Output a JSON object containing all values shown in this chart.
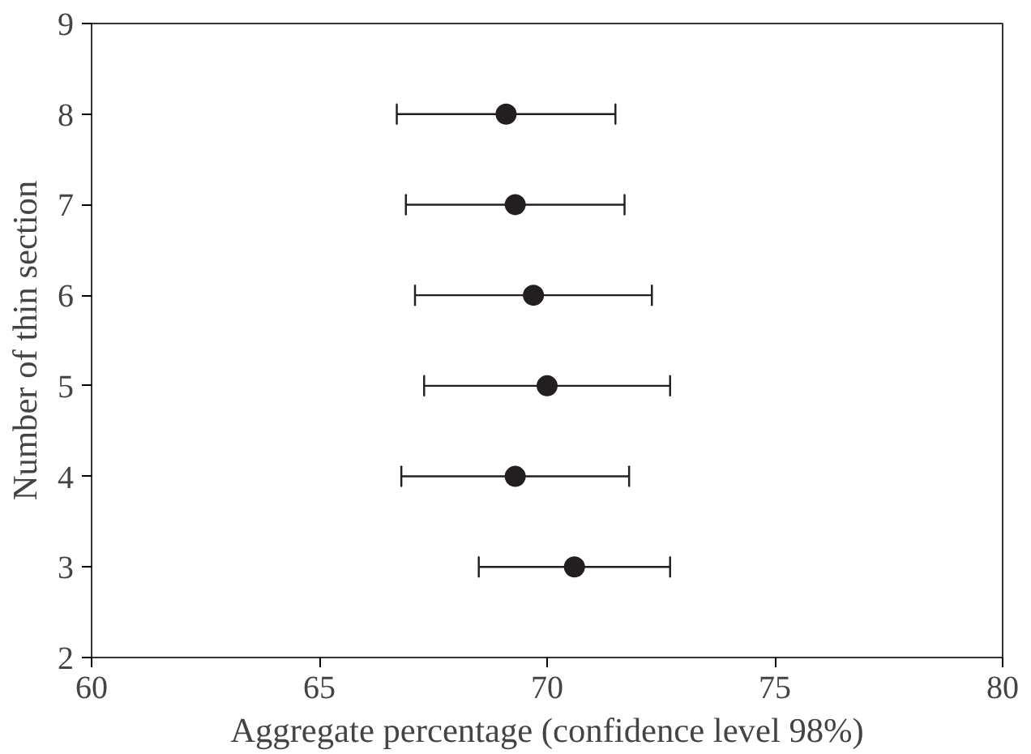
{
  "chart_data": {
    "type": "scatter",
    "xlabel": "Aggregate percentage (confidence level 98%)",
    "ylabel": "Number of thin section",
    "x": [
      70.6,
      69.3,
      70.0,
      69.7,
      69.3,
      69.1
    ],
    "values": [
      3,
      4,
      5,
      6,
      7,
      8
    ],
    "xerrors": [
      [
        68.5,
        72.7
      ],
      [
        66.8,
        71.8
      ],
      [
        67.3,
        72.7
      ],
      [
        67.1,
        72.3
      ],
      [
        66.9,
        71.7
      ],
      [
        66.7,
        71.5
      ]
    ],
    "color": "#231f20",
    "marker": "circle",
    "grid": false,
    "xlim": [
      60,
      80
    ],
    "xticks": [
      60,
      65,
      70,
      75,
      80
    ],
    "ylim": [
      2,
      9
    ],
    "yticks": [
      2,
      3,
      4,
      5,
      6,
      7,
      8,
      9
    ]
  }
}
